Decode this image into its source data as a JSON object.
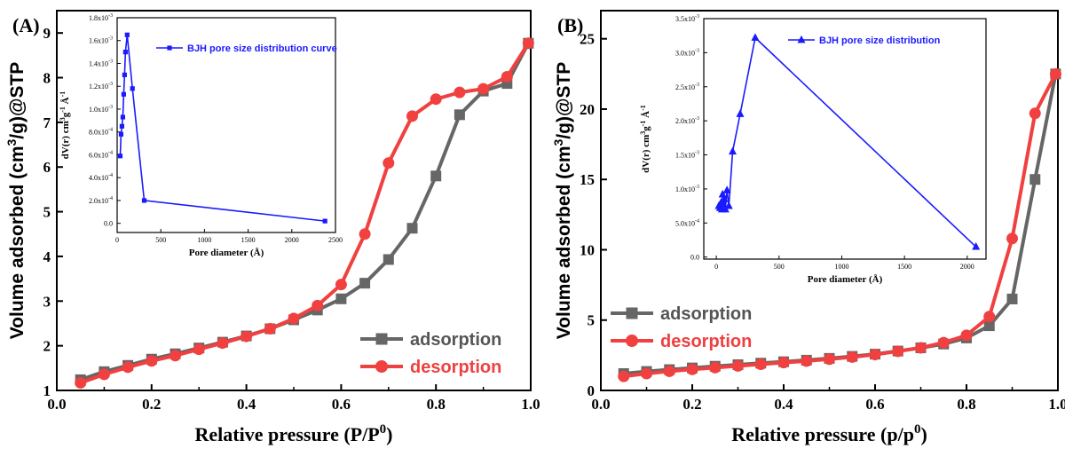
{
  "chart_data": [
    {
      "type": "line",
      "panel_label": "(A)",
      "xlabel_main": "Relative pressure (P/P",
      "xlabel_sup": "0",
      "xlabel_end": ")",
      "ylabel_pre": "Volume adsorbed (cm",
      "ylabel_sup": "3",
      "ylabel_post": "/g)@STP",
      "xlim": [
        0.0,
        1.0
      ],
      "ylim": [
        1,
        9.5
      ],
      "xticks": [
        "0.0",
        "0.2",
        "0.4",
        "0.6",
        "0.8",
        "1.0"
      ],
      "yticks": [
        "1",
        "2",
        "3",
        "4",
        "5",
        "6",
        "7",
        "8",
        "9"
      ],
      "legend_position": "bottom-right",
      "series": [
        {
          "name": "adsorption",
          "color": "#666666",
          "marker": "square",
          "x": [
            0.05,
            0.1,
            0.15,
            0.2,
            0.25,
            0.3,
            0.35,
            0.4,
            0.45,
            0.5,
            0.55,
            0.6,
            0.65,
            0.7,
            0.75,
            0.8,
            0.85,
            0.9,
            0.95,
            0.995
          ],
          "y": [
            1.24,
            1.42,
            1.56,
            1.7,
            1.82,
            1.95,
            2.08,
            2.22,
            2.38,
            2.58,
            2.8,
            3.05,
            3.4,
            3.93,
            4.63,
            5.8,
            7.17,
            7.7,
            7.87,
            8.77
          ]
        },
        {
          "name": "desorption",
          "color": "#f04040",
          "marker": "circle",
          "x": [
            0.05,
            0.1,
            0.15,
            0.2,
            0.25,
            0.3,
            0.35,
            0.4,
            0.45,
            0.5,
            0.55,
            0.6,
            0.65,
            0.7,
            0.75,
            0.8,
            0.85,
            0.9,
            0.95,
            0.995
          ],
          "y": [
            1.17,
            1.36,
            1.52,
            1.66,
            1.78,
            1.92,
            2.06,
            2.21,
            2.38,
            2.61,
            2.9,
            3.37,
            4.5,
            6.09,
            7.14,
            7.52,
            7.67,
            7.75,
            8.02,
            8.77
          ]
        }
      ],
      "inset": {
        "xlabel": "Pore diameter (Å)",
        "ylabel_pre": "dV(r) cm",
        "ylabel_sup1": "3",
        "ylabel_mid": "g",
        "ylabel_sup2": "-1",
        "ylabel_post": " Å",
        "ylabel_sup3": "-1",
        "xlim": [
          0,
          2500
        ],
        "ylim": [
          -8e-05,
          0.0018
        ],
        "xticks": [
          "0",
          "500",
          "1000",
          "1500",
          "2000",
          "2500"
        ],
        "yticks": [
          {
            "m": "0.0",
            "e": ""
          },
          {
            "m": "2.0x10",
            "e": "-4"
          },
          {
            "m": "4.0x10",
            "e": "-4"
          },
          {
            "m": "6.0x10",
            "e": "-4"
          },
          {
            "m": "8.0x10",
            "e": "-4"
          },
          {
            "m": "1.0x10",
            "e": "-3"
          },
          {
            "m": "1.2x10",
            "e": "-3"
          },
          {
            "m": "1.4x10",
            "e": "-3"
          },
          {
            "m": "1.6x10",
            "e": "-3"
          },
          {
            "m": "1.8x10",
            "e": "-3"
          }
        ],
        "series": [
          {
            "name": "BJH pore size distribution curve",
            "color": "#1a1aff",
            "marker": "square",
            "x": [
              35,
              45,
              55,
              65,
              75,
              85,
              95,
              115,
              175,
              310,
              2380
            ],
            "y": [
              0.00059,
              0.00078,
              0.00085,
              0.00093,
              0.00113,
              0.0013,
              0.0015,
              0.00165,
              0.00118,
              0.0002,
              2e-05
            ]
          }
        ]
      }
    },
    {
      "type": "line",
      "panel_label": "(B)",
      "xlabel_main": "Relative pressure (p/p",
      "xlabel_sup": "0",
      "xlabel_end": ")",
      "ylabel_pre": "Volume adsorbed (cm",
      "ylabel_sup": "3",
      "ylabel_post": "/g)@STP",
      "xlim": [
        0.0,
        1.0
      ],
      "ylim": [
        0,
        27
      ],
      "xticks": [
        "0.0",
        "0.2",
        "0.4",
        "0.6",
        "0.8",
        "1.0"
      ],
      "yticks": [
        "0",
        "5",
        "10",
        "15",
        "20",
        "25"
      ],
      "legend_position": "bottom-left",
      "series": [
        {
          "name": "adsorption",
          "color": "#666666",
          "marker": "square",
          "x": [
            0.05,
            0.1,
            0.15,
            0.2,
            0.25,
            0.3,
            0.35,
            0.4,
            0.45,
            0.5,
            0.55,
            0.6,
            0.65,
            0.7,
            0.75,
            0.8,
            0.85,
            0.9,
            0.95,
            0.995
          ],
          "y": [
            1.2,
            1.35,
            1.48,
            1.6,
            1.72,
            1.83,
            1.94,
            2.04,
            2.15,
            2.28,
            2.42,
            2.58,
            2.8,
            3.03,
            3.3,
            3.73,
            4.6,
            6.5,
            15.0,
            22.5
          ]
        },
        {
          "name": "desorption",
          "color": "#f04040",
          "marker": "circle",
          "x": [
            0.05,
            0.1,
            0.15,
            0.2,
            0.25,
            0.3,
            0.35,
            0.4,
            0.45,
            0.5,
            0.55,
            0.6,
            0.65,
            0.7,
            0.75,
            0.8,
            0.85,
            0.9,
            0.95,
            0.995
          ],
          "y": [
            1.0,
            1.2,
            1.36,
            1.5,
            1.62,
            1.74,
            1.86,
            1.98,
            2.09,
            2.22,
            2.37,
            2.55,
            2.78,
            3.03,
            3.4,
            3.92,
            5.25,
            10.8,
            19.7,
            22.5
          ]
        }
      ],
      "inset": {
        "xlabel": "Pore diameter (Å)",
        "ylabel_pre": "dV(r) cm",
        "ylabel_sup1": "3",
        "ylabel_mid": "g",
        "ylabel_sup2": "-1",
        "ylabel_post": " Å",
        "ylabel_sup3": "-1",
        "xlim": [
          -100,
          2150
        ],
        "ylim": [
          -3e-05,
          0.0035
        ],
        "xticks": [
          "0",
          "500",
          "1000",
          "1500",
          "2000"
        ],
        "yticks": [
          {
            "m": "0.0",
            "e": ""
          },
          {
            "m": "5.0x10",
            "e": "-4"
          },
          {
            "m": "1.0x10",
            "e": "-3"
          },
          {
            "m": "1.5x10",
            "e": "-3"
          },
          {
            "m": "2.0x10",
            "e": "-3"
          },
          {
            "m": "2.5x10",
            "e": "-3"
          },
          {
            "m": "3.0x10",
            "e": "-3"
          },
          {
            "m": "3.5x10",
            "e": "-3"
          }
        ],
        "series": [
          {
            "name": "BJH pore size distribution",
            "color": "#1a1aff",
            "marker": "triangle",
            "x": [
              20,
              30,
              38,
              45,
              50,
              56,
              63,
              72,
              85,
              100,
              130,
              190,
              310,
              2070
            ],
            "y": [
              0.00075,
              0.00072,
              0.0008,
              0.0007,
              0.00092,
              0.00077,
              0.00085,
              0.0007,
              0.00098,
              0.00075,
              0.00155,
              0.0021,
              0.00322,
              0.00015
            ]
          }
        ]
      }
    }
  ]
}
